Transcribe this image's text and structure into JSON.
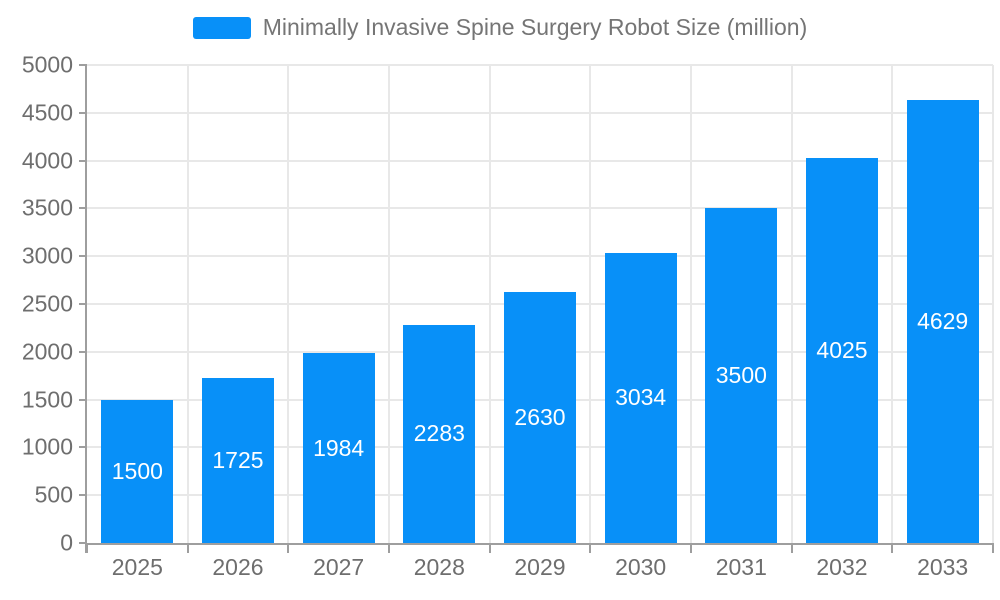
{
  "legend": {
    "label": "Minimally Invasive Spine Surgery Robot Size (million)"
  },
  "chart_data": {
    "type": "bar",
    "title": "Minimally Invasive Spine Surgery Robot Size (million)",
    "categories": [
      "2025",
      "2026",
      "2027",
      "2028",
      "2029",
      "2030",
      "2031",
      "2032",
      "2033"
    ],
    "values": [
      1500,
      1725,
      1984,
      2283,
      2630,
      3034,
      3500,
      4025,
      4629
    ],
    "series": [
      {
        "name": "Minimally Invasive Spine Surgery Robot Size (million)",
        "values": [
          1500,
          1725,
          1984,
          2283,
          2630,
          3034,
          3500,
          4025,
          4629
        ]
      }
    ],
    "xlabel": "",
    "ylabel": "",
    "ylim": [
      0,
      5000
    ],
    "yticks": [
      0,
      500,
      1000,
      1500,
      2000,
      2500,
      3000,
      3500,
      4000,
      4500,
      5000
    ],
    "grid": true,
    "legend_position": "top",
    "value_label_position": "inside-center",
    "colors": {
      "bar": "#0890f8",
      "bar_label": "#ffffff",
      "axis_text": "#6e6e6e",
      "legend_text": "#757575",
      "grid_line": "#e8e8e8",
      "axis_line": "#9e9e9e",
      "background": "#ffffff"
    }
  }
}
